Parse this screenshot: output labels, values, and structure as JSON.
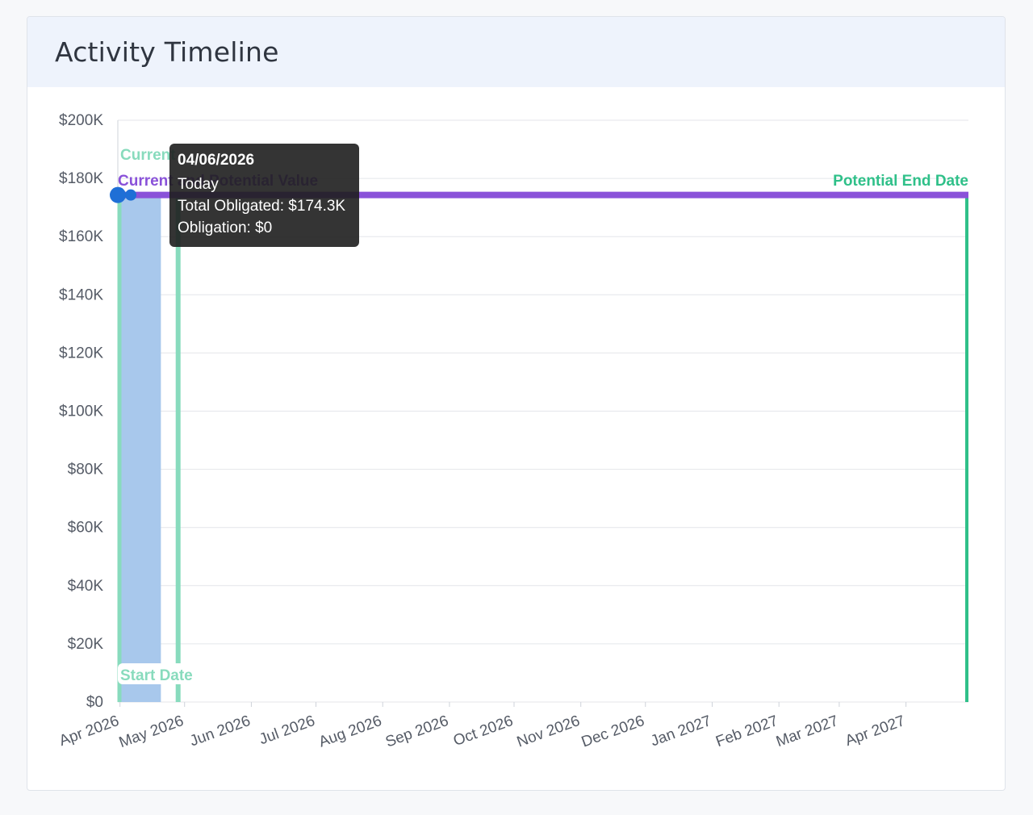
{
  "card": {
    "title": "Activity Timeline"
  },
  "chart_data": {
    "type": "bar",
    "y_tick_labels": [
      "$0",
      "$20K",
      "$40K",
      "$60K",
      "$80K",
      "$100K",
      "$120K",
      "$140K",
      "$160K",
      "$180K",
      "$200K"
    ],
    "ylim": [
      0,
      200000
    ],
    "x_tick_labels": [
      "Apr 2026",
      "May 2026",
      "Jun 2026",
      "Jul 2026",
      "Aug 2026",
      "Sep 2026",
      "Oct 2026",
      "Nov 2026",
      "Dec 2026",
      "Jan 2027",
      "Feb 2027",
      "Mar 2027",
      "Apr 2027"
    ],
    "xlim": [
      "2026-03-31",
      "2027-04-30"
    ],
    "grid": true,
    "obligation_bar": {
      "from": "2026-03-31",
      "to": "2026-04-20",
      "value": 174300
    },
    "value_line": {
      "label": "Current and Potential Value",
      "from": "2026-03-31",
      "to": "2027-04-30",
      "value": 174300,
      "points": [
        {
          "date": "2026-03-31",
          "value": 174300
        },
        {
          "date": "2026-04-06",
          "value": 174300
        }
      ]
    },
    "markers": [
      {
        "label": "Start Date",
        "date": "2026-03-31"
      },
      {
        "label": "Current",
        "date": "2026-04-28"
      },
      {
        "label": "Potential End Date",
        "date": "2027-04-30"
      }
    ],
    "colors": {
      "bar": "#a8c8ec",
      "value_line": "#8a52d9",
      "marker_light": "#88dbbd",
      "marker_dark": "#2fc089",
      "point": "#1f6fd6",
      "grid": "#e4e6ea",
      "tick_text": "#555b66"
    }
  },
  "tooltip": {
    "title": "04/06/2026",
    "lines": [
      "Today",
      "Total Obligated: $174.3K",
      "Obligation: $0"
    ]
  }
}
